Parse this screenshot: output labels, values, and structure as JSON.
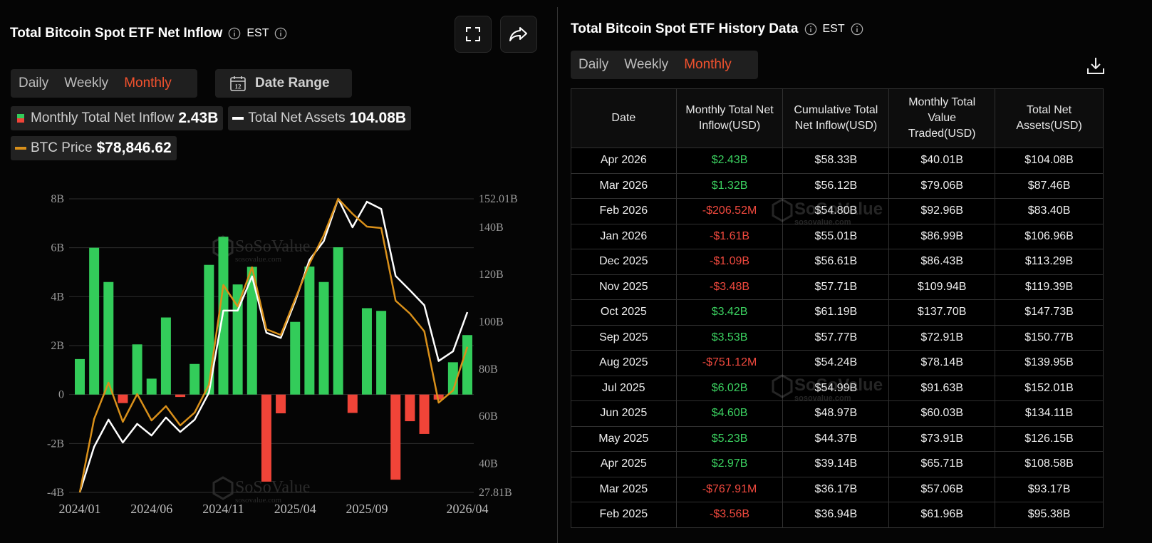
{
  "header": {
    "title": "Total Bitcoin Spot ETF Net Inflow",
    "timezone": "EST",
    "tabs": [
      "Daily",
      "Weekly",
      "Monthly"
    ],
    "calendar_day": "12",
    "date_range": "Date Range"
  },
  "chart_data": {
    "type": "bar-line",
    "categories": [
      "2024/01",
      null,
      null,
      null,
      null,
      "2024/06",
      null,
      null,
      null,
      null,
      "2024/11",
      null,
      null,
      null,
      null,
      "2025/04",
      null,
      null,
      null,
      null,
      "2025/09",
      null,
      null,
      null,
      null,
      null,
      null,
      "2026/04"
    ],
    "series": [
      {
        "name": "Monthly Total Net Inflow",
        "latest": "2.43B",
        "type": "bar",
        "color": "#33cc5a",
        "negative_color": "#f04438",
        "values": [
          1.45,
          6.0,
          4.6,
          -0.35,
          2.05,
          0.65,
          3.15,
          -0.1,
          1.25,
          5.3,
          6.45,
          4.5,
          5.22,
          -3.56,
          -0.76791,
          2.97,
          5.23,
          4.6,
          6.02,
          -0.75112,
          3.53,
          3.42,
          -3.48,
          -1.09,
          -1.61,
          -0.20652,
          1.32,
          2.43
        ]
      },
      {
        "name": "Total Net Assets",
        "latest": "104.08B",
        "type": "line",
        "axis": "y2",
        "color": "#ffffff",
        "values": [
          27.81,
          47.1,
          58.6,
          48.9,
          56.8,
          51.9,
          59.5,
          53.4,
          58.6,
          70.0,
          104.7,
          104.7,
          119.2,
          95.38,
          93.17,
          108.58,
          126.15,
          134.11,
          152.01,
          139.95,
          150.77,
          147.73,
          119.39,
          113.29,
          106.96,
          83.4,
          87.46,
          104.08
        ]
      },
      {
        "name": "BTC Price",
        "latest": "$78,846.62",
        "type": "line",
        "axis": "y3",
        "color": "#d9901a",
        "values": [
          42500,
          60824,
          69897,
          60112,
          67050,
          60468,
          64026,
          59223,
          62425,
          69363,
          94269,
          88932,
          98716,
          83239,
          81816,
          90711,
          99606,
          106722,
          115795,
          112059,
          108857,
          108501,
          90355,
          87153,
          82705,
          64915,
          67939,
          78846.62
        ]
      }
    ],
    "ylim": [
      -4,
      8
    ],
    "yticks": [
      {
        "value": -4,
        "label": "-4B"
      },
      {
        "value": -2,
        "label": "-2B"
      },
      0,
      {
        "value": 2,
        "label": "2B"
      },
      {
        "value": 4,
        "label": "4B"
      },
      {
        "value": 6,
        "label": "6B"
      },
      {
        "value": 8,
        "label": "8B"
      }
    ],
    "y2lim": [
      27.81,
      152.01
    ],
    "y2ticks": [
      {
        "value": 27.81,
        "label": "27.81B"
      },
      {
        "value": 40,
        "label": "40B"
      },
      {
        "value": 60,
        "label": "60B"
      },
      {
        "value": 80,
        "label": "80B"
      },
      {
        "value": 100,
        "label": "100B"
      },
      {
        "value": 120,
        "label": "120B"
      },
      {
        "value": 140,
        "label": "140B"
      },
      {
        "value": 152.01,
        "label": "152.01B"
      }
    ],
    "y3lim": [
      42500,
      115795
    ],
    "grid": true
  },
  "history": {
    "title": "Total Bitcoin Spot ETF History Data",
    "timezone": "EST",
    "tabs": [
      "Daily",
      "Weekly",
      "Monthly"
    ],
    "table": {
      "columns": [
        "Date",
        "Monthly Total Net Inflow(USD)",
        "Cumulative Total Net Inflow(USD)",
        "Monthly Total Value Traded(USD)",
        "Total Net Assets(USD)"
      ],
      "rows": [
        [
          "Apr 2026",
          "$2.43B",
          "$58.33B",
          "$40.01B",
          "$104.08B"
        ],
        [
          "Mar 2026",
          "$1.32B",
          "$56.12B",
          "$79.06B",
          "$87.46B"
        ],
        [
          "Feb 2026",
          "-$206.52M",
          "$54.80B",
          "$92.96B",
          "$83.40B"
        ],
        [
          "Jan 2026",
          "-$1.61B",
          "$55.01B",
          "$86.99B",
          "$106.96B"
        ],
        [
          "Dec 2025",
          "-$1.09B",
          "$56.61B",
          "$86.43B",
          "$113.29B"
        ],
        [
          "Nov 2025",
          "-$3.48B",
          "$57.71B",
          "$109.94B",
          "$119.39B"
        ],
        [
          "Oct 2025",
          "$3.42B",
          "$61.19B",
          "$137.70B",
          "$147.73B"
        ],
        [
          "Sep 2025",
          "$3.53B",
          "$57.77B",
          "$72.91B",
          "$150.77B"
        ],
        [
          "Aug 2025",
          "-$751.12M",
          "$54.24B",
          "$78.14B",
          "$139.95B"
        ],
        [
          "Jul 2025",
          "$6.02B",
          "$54.99B",
          "$91.63B",
          "$152.01B"
        ],
        [
          "Jun 2025",
          "$4.60B",
          "$48.97B",
          "$60.03B",
          "$134.11B"
        ],
        [
          "May 2025",
          "$5.23B",
          "$44.37B",
          "$73.91B",
          "$126.15B"
        ],
        [
          "Apr 2025",
          "$2.97B",
          "$39.14B",
          "$65.71B",
          "$108.58B"
        ],
        [
          "Mar 2025",
          "-$767.91M",
          "$36.17B",
          "$57.06B",
          "$93.17B"
        ],
        [
          "Feb 2025",
          "-$3.56B",
          "$36.94B",
          "$61.96B",
          "$95.38B"
        ]
      ]
    }
  },
  "watermark": {
    "brand": "SoSoValue",
    "url": "sosovalue.com"
  }
}
